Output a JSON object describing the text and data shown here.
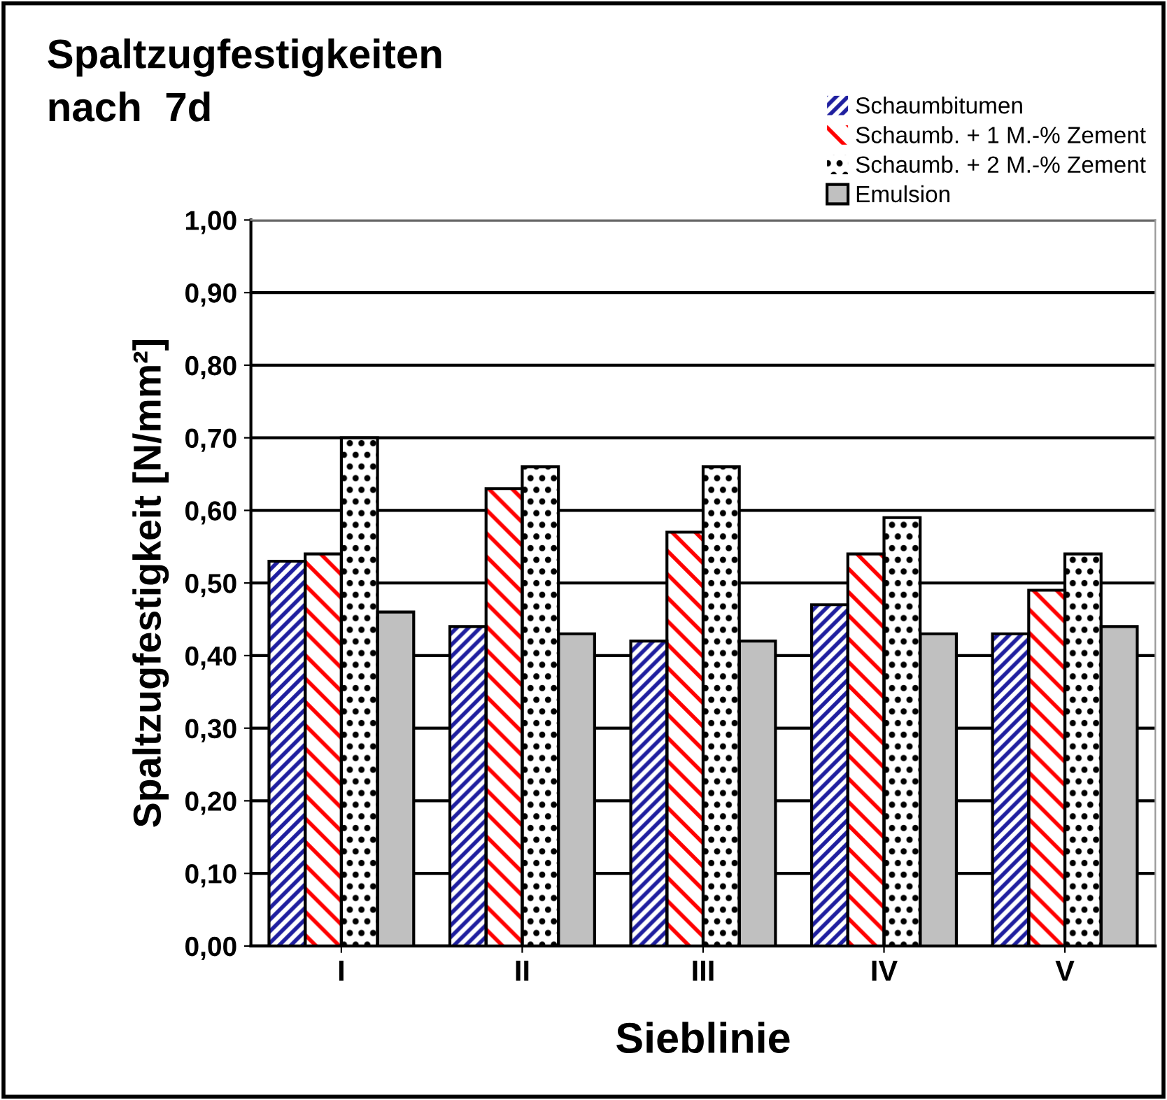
{
  "chart_data": {
    "type": "bar",
    "title": "Spaltzugfestigkeiten\nnach  7d",
    "xlabel": "Sieblinie",
    "ylabel": "Spaltzugfestigkeit [N/mm²]",
    "categories": [
      "I",
      "II",
      "III",
      "IV",
      "V"
    ],
    "series": [
      {
        "name": "Schaumbitumen",
        "color": "#1f1f9f",
        "values": [
          0.53,
          0.44,
          0.42,
          0.47,
          0.43
        ]
      },
      {
        "name": "Schaumb. + 1 M.-% Zement",
        "color": "#ff0000",
        "values": [
          0.54,
          0.63,
          0.57,
          0.54,
          0.49
        ]
      },
      {
        "name": "Schaumb. + 2 M.-% Zement",
        "color": "#000000",
        "values": [
          0.7,
          0.66,
          0.66,
          0.59,
          0.54
        ]
      },
      {
        "name": "Emulsion",
        "color": "#c0c0c0",
        "values": [
          0.46,
          0.43,
          0.42,
          0.43,
          0.44
        ]
      }
    ],
    "ylim": [
      0,
      1
    ],
    "yticks": [
      {
        "value": 0,
        "label": "0,00"
      },
      {
        "value": 0.1,
        "label": "0,10"
      },
      {
        "value": 0.2,
        "label": "0,20"
      },
      {
        "value": 0.3,
        "label": "0,30"
      },
      {
        "value": 0.4,
        "label": "0,40"
      },
      {
        "value": 0.5,
        "label": "0,50"
      },
      {
        "value": 0.6,
        "label": "0,60"
      },
      {
        "value": 0.7,
        "label": "0,70"
      },
      {
        "value": 0.8,
        "label": "0,80"
      },
      {
        "value": 0.9,
        "label": "0,90"
      },
      {
        "value": 1.0,
        "label": "1,00"
      }
    ],
    "grid": "y",
    "legend": "top right"
  }
}
